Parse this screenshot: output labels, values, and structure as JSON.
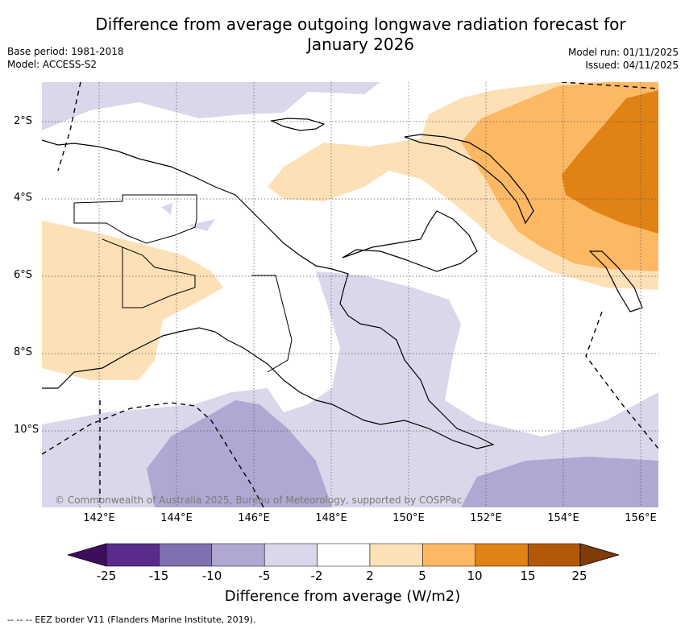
{
  "title_line1": "Difference from average outgoing longwave radiation forecast for",
  "title_line2": "January 2026",
  "meta_left": {
    "base_period": "Base period: 1981-2018",
    "model": "Model: ACCESS-S2"
  },
  "meta_right": {
    "model_run": "Model run: 01/11/2025",
    "issued": "Issued: 04/11/2025"
  },
  "lon_ticks": [
    "142°E",
    "144°E",
    "146°E",
    "148°E",
    "150°E",
    "152°E",
    "154°E",
    "156°E"
  ],
  "lat_ticks": [
    "2°S",
    "4°S",
    "6°S",
    "8°S",
    "10°S"
  ],
  "copyright": "© Commonwealth of Australia 2025, Bureau of Meteorology, supported by COSPPac",
  "colorbar": {
    "labels": [
      "-25",
      "-15",
      "-10",
      "-5",
      "-2",
      "2",
      "5",
      "10",
      "15",
      "25"
    ],
    "colors": [
      "#3f0d5e",
      "#5a2a8c",
      "#8170af",
      "#b0a8d2",
      "#d9d8ea",
      "#ffffff",
      "#fee0b6",
      "#fdb863",
      "#e08214",
      "#b35806",
      "#7f3b08"
    ],
    "title": "Difference from average (W/m2)"
  },
  "footnote": "-- -- -- EEZ border V11 (Flanders Marine Institute, 2019)."
}
